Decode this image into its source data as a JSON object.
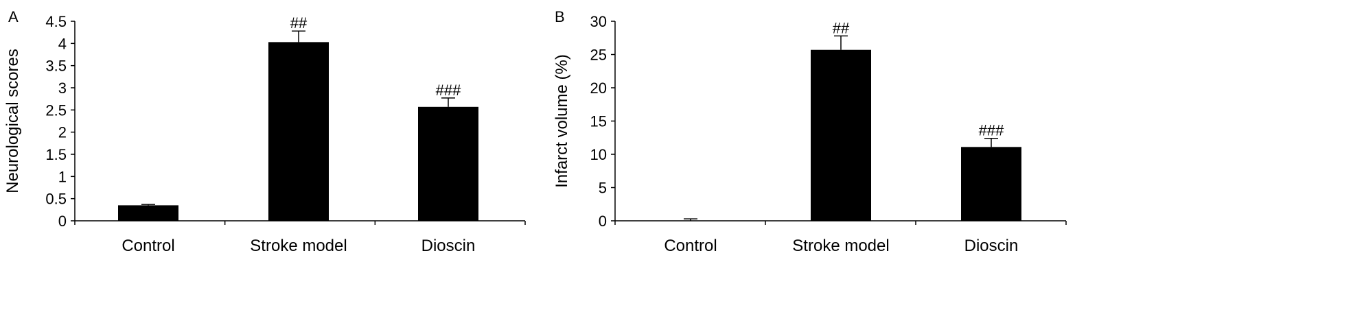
{
  "chart_data": [
    {
      "type": "bar",
      "panel_label": "A",
      "categories": [
        "Control",
        "Stroke model",
        "Dioscin"
      ],
      "values": [
        0.35,
        4.03,
        2.57
      ],
      "errors": [
        0.02,
        0.25,
        0.2
      ],
      "annotations": [
        "",
        "##",
        "###"
      ],
      "title": "",
      "xlabel": "",
      "ylabel": "Neurological scores",
      "ylim": [
        0,
        4.5
      ],
      "yticks": [
        "0",
        "0.5",
        "1",
        "1.5",
        "2",
        "2.5",
        "3",
        "3.5",
        "4",
        "4.5"
      ],
      "bar_color": "#000000",
      "grid": false,
      "legend": "none"
    },
    {
      "type": "bar",
      "panel_label": "B",
      "categories": [
        "Control",
        "Stroke model",
        "Dioscin"
      ],
      "values": [
        0,
        25.7,
        11.1
      ],
      "errors": [
        0.3,
        2.1,
        1.3
      ],
      "annotations": [
        "",
        "##",
        "###"
      ],
      "title": "",
      "xlabel": "",
      "ylabel": "Infarct volume (%)",
      "ylim": [
        0,
        30
      ],
      "yticks": [
        "0",
        "5",
        "10",
        "15",
        "20",
        "25",
        "30"
      ],
      "bar_color": "#000000",
      "grid": false,
      "legend": "none"
    }
  ]
}
